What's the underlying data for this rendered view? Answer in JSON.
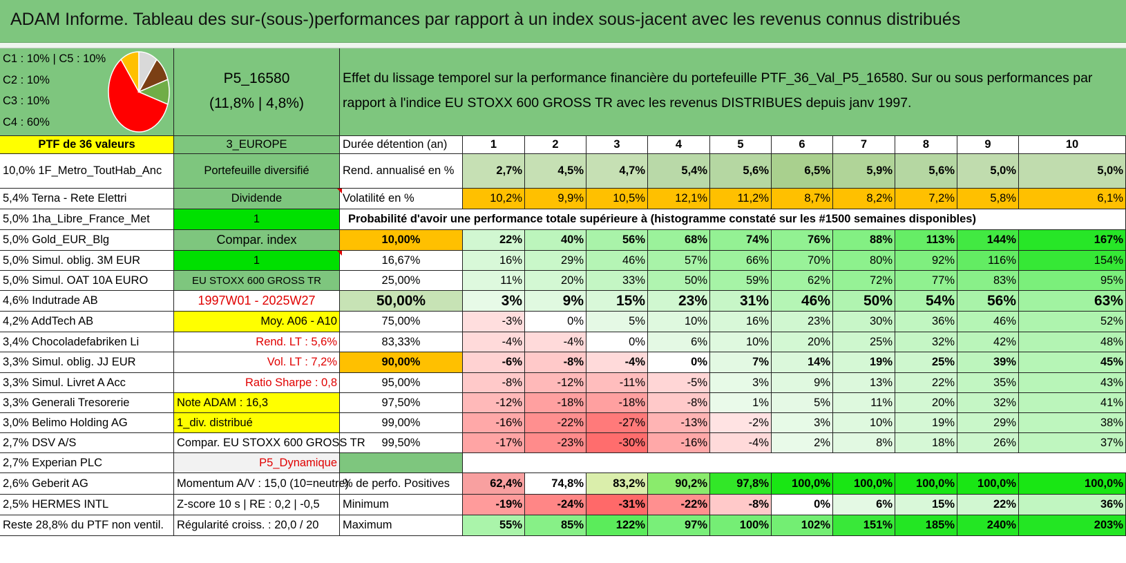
{
  "title": "ADAM Informe. Tableau des sur-(sous-)performances par rapport à un index sous-jacent avec les revenus connus distribués",
  "legend": {
    "lines": [
      "C1 : 10% | C5 : 10%",
      "C2 : 10%",
      "C3 : 10%",
      "C4 : 60%"
    ],
    "pie_slices": [
      {
        "label": "C4",
        "value": 60,
        "color": "#ff0000"
      },
      {
        "label": "C1",
        "value": 10,
        "color": "#ffc000"
      },
      {
        "label": "C5",
        "value": 10,
        "color": "#d9d9d9"
      },
      {
        "label": "C2",
        "value": 10,
        "color": "#7b3f14"
      },
      {
        "label": "C3",
        "value": 10,
        "color": "#70ad47"
      }
    ]
  },
  "portfolio": {
    "code": "P5_16580",
    "sub": "(11,8% | 4,8%)",
    "description_line1": "Effet du lissage temporel sur la performance financière du portefeuille PTF_36_Val_P5_16580. Sur ou sous performances par",
    "description_line2": "rapport à l'indice EU STOXX 600 GROSS TR avec les revenus DISTRIBUES depuis janv 1997."
  },
  "holdings": [
    "PTF de 36 valeurs",
    "10,0% 1F_Metro_ToutHab_Anc",
    "5,4% Terna - Rete Elettri",
    "5,0% 1ha_Libre_France_Met",
    "5,0% Gold_EUR_Blg",
    "5,0% Simul. oblig. 3M EUR",
    "5,0% Simul. OAT 10A EURO",
    "4,6% Indutrade AB",
    "4,2% AddTech AB",
    "3,4% Chocoladefabriken Li",
    "3,3% Simul. oblig. JJ EUR",
    "3,3% Simul. Livret A Acc",
    "3,3% Generali Tresorerie",
    "3,0% Belimo Holding AG",
    "2,7% DSV A/S",
    "2,7% Experian PLC",
    "2,6% Geberit AG",
    "2,5% HERMES INTL",
    "Reste 28,8% du PTF non ventil."
  ],
  "params": [
    "3_EUROPE",
    "Portefeuille diversifié",
    "Dividende",
    "1",
    "Compar. index",
    "1",
    "EU STOXX 600 GROSS TR",
    "1997W01 - 2025W27",
    "Moy. A06 - A10",
    "Rend. LT : 5,6%",
    "Vol. LT : 7,2%",
    "Ratio Sharpe : 0,8",
    "Note ADAM : 16,3",
    "1_div. distribué",
    "Compar. EU STOXX 600 GROSS TR",
    "P5_Dynamique",
    "Momentum A/V : 15,0 (10=neutre)",
    "Z-score 10 s | RE : 0,2 | -0,5",
    "Régularité croiss. : 20,0 / 20"
  ],
  "table": {
    "years_label": "Durée détention (an)",
    "years": [
      "1",
      "2",
      "3",
      "4",
      "5",
      "6",
      "7",
      "8",
      "9",
      "10"
    ],
    "rend_label": "Rend. annualisé en %",
    "rend": [
      "2,7%",
      "4,5%",
      "4,7%",
      "5,4%",
      "5,6%",
      "6,5%",
      "5,9%",
      "5,6%",
      "5,0%",
      "5,0%"
    ],
    "vol_label": "Volatilité en %",
    "vol": [
      "10,2%",
      "9,9%",
      "10,5%",
      "12,1%",
      "11,2%",
      "8,7%",
      "8,2%",
      "7,2%",
      "5,8%",
      "6,1%"
    ],
    "prob_label": "Probabilité d'avoir une performance totale supérieure à (histogramme constaté sur les #1500 semaines disponibles)",
    "prob_rows": [
      {
        "pct": "10,00%",
        "vals": [
          "22%",
          "40%",
          "56%",
          "68%",
          "74%",
          "76%",
          "88%",
          "113%",
          "144%",
          "167%"
        ]
      },
      {
        "pct": "16,67%",
        "vals": [
          "16%",
          "29%",
          "46%",
          "57%",
          "66%",
          "70%",
          "80%",
          "92%",
          "116%",
          "154%"
        ]
      },
      {
        "pct": "25,00%",
        "vals": [
          "11%",
          "20%",
          "33%",
          "50%",
          "59%",
          "62%",
          "72%",
          "77%",
          "83%",
          "95%"
        ]
      },
      {
        "pct": "50,00%",
        "vals": [
          "3%",
          "9%",
          "15%",
          "23%",
          "31%",
          "46%",
          "50%",
          "54%",
          "56%",
          "63%"
        ]
      },
      {
        "pct": "75,00%",
        "vals": [
          "-3%",
          "0%",
          "5%",
          "10%",
          "16%",
          "23%",
          "30%",
          "36%",
          "46%",
          "52%"
        ]
      },
      {
        "pct": "83,33%",
        "vals": [
          "-4%",
          "-4%",
          "0%",
          "6%",
          "10%",
          "20%",
          "25%",
          "32%",
          "42%",
          "48%"
        ]
      },
      {
        "pct": "90,00%",
        "vals": [
          "-6%",
          "-8%",
          "-4%",
          "0%",
          "7%",
          "14%",
          "19%",
          "25%",
          "39%",
          "45%"
        ]
      },
      {
        "pct": "95,00%",
        "vals": [
          "-8%",
          "-12%",
          "-11%",
          "-5%",
          "3%",
          "9%",
          "13%",
          "22%",
          "35%",
          "43%"
        ]
      },
      {
        "pct": "97,50%",
        "vals": [
          "-12%",
          "-18%",
          "-18%",
          "-8%",
          "1%",
          "5%",
          "11%",
          "20%",
          "32%",
          "41%"
        ]
      },
      {
        "pct": "99,00%",
        "vals": [
          "-16%",
          "-22%",
          "-27%",
          "-13%",
          "-2%",
          "3%",
          "10%",
          "19%",
          "29%",
          "38%"
        ]
      },
      {
        "pct": "99,50%",
        "vals": [
          "-17%",
          "-23%",
          "-30%",
          "-16%",
          "-4%",
          "2%",
          "8%",
          "18%",
          "26%",
          "37%"
        ]
      }
    ],
    "pos_label": "% de perfo. Positives",
    "pos": [
      "62,4%",
      "74,8%",
      "83,2%",
      "90,2%",
      "97,8%",
      "100,0%",
      "100,0%",
      "100,0%",
      "100,0%",
      "100,0%"
    ],
    "min_label": "Minimum",
    "min": [
      "-19%",
      "-24%",
      "-31%",
      "-22%",
      "-8%",
      "0%",
      "6%",
      "15%",
      "22%",
      "36%"
    ],
    "max_label": "Maximum",
    "max": [
      "55%",
      "85%",
      "122%",
      "97%",
      "100%",
      "102%",
      "151%",
      "185%",
      "240%",
      "203%"
    ]
  }
}
